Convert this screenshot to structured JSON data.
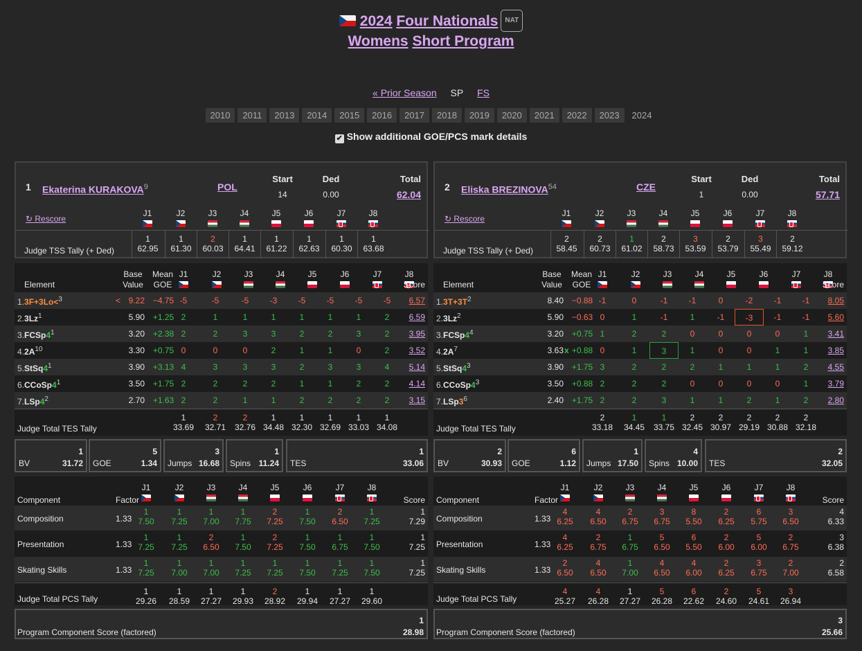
{
  "header": {
    "flag": "CZE",
    "year": "2024",
    "event": "Four Nationals",
    "badge": "NAT",
    "category": "Womens",
    "segment": "Short Program"
  },
  "nav": {
    "prior": "« Prior Season",
    "sp": "SP",
    "fs": "FS"
  },
  "years": [
    "2010",
    "2011",
    "2013",
    "2014",
    "2015",
    "2016",
    "2017",
    "2018",
    "2019",
    "2020",
    "2021",
    "2022",
    "2023",
    "2024"
  ],
  "checkbox": {
    "checked": "✔",
    "label": "Show additional GOE/PCS mark details"
  },
  "labels": {
    "start": "Start",
    "ded": "Ded",
    "total": "Total",
    "rescore": "↻ Rescore",
    "tss_tally": "Judge TSS Tally (+ Ded)",
    "element": "Element",
    "base": "Base",
    "value": "Value",
    "mean": "Mean",
    "goe": "GOE",
    "score": "Score",
    "tes_tally": "Judge Total TES Tally",
    "bv": "BV",
    "goe_s": "GOE",
    "jumps": "Jumps",
    "spins": "Spins",
    "tes": "TES",
    "component": "Component",
    "factor": "Factor",
    "pcs_tally": "Judge Total PCS Tally",
    "pcs": "Program Component Score (factored)"
  },
  "judges": [
    "J1",
    "J2",
    "J3",
    "J4",
    "J5",
    "J6",
    "J7",
    "J8"
  ],
  "judge_flags": [
    "CZE",
    "CZE",
    "HUN",
    "HUN",
    "POL",
    "POL",
    "SVK",
    "SVK"
  ],
  "skaters": [
    {
      "rank": "1",
      "name": "Ekaterina KURAKOVA",
      "name_sup": "9",
      "nation": "POL",
      "start": "14",
      "ded": "0.00",
      "total": "62.04",
      "tss": [
        [
          "1",
          "62.95"
        ],
        [
          "1",
          "61.30"
        ],
        [
          "2",
          "60.03"
        ],
        [
          "1",
          "64.41"
        ],
        [
          "1",
          "61.22"
        ],
        [
          "1",
          "62.63"
        ],
        [
          "1",
          "60.30"
        ],
        [
          "1",
          "63.68"
        ]
      ],
      "elements": [
        {
          "idx": "1.",
          "name": "3F+3Lo<",
          "sup": "3",
          "flag": "<",
          "bv": "9.22",
          "goe": "−4.75",
          "marks": [
            "-5",
            "-5",
            "-5",
            "-3",
            "-5",
            "-5",
            "-5",
            "-5"
          ],
          "score": "6.57"
        },
        {
          "idx": "2.",
          "name": "3Lz",
          "sup": "1",
          "flag": "",
          "bv": "5.90",
          "goe": "+1.25",
          "marks": [
            "2",
            "1",
            "1",
            "1",
            "1",
            "1",
            "1",
            "2"
          ],
          "score": "6.59"
        },
        {
          "idx": "3.",
          "name": "FCSp",
          "lvl": "4",
          "sup": "1",
          "flag": "",
          "bv": "3.20",
          "goe": "+2.38",
          "marks": [
            "2",
            "2",
            "3",
            "3",
            "2",
            "2",
            "3",
            "2"
          ],
          "score": "3.95"
        },
        {
          "idx": "4.",
          "name": "2A",
          "sup": "10",
          "flag": "",
          "bv": "3.30",
          "goe": "+0.75",
          "marks": [
            "0",
            "0",
            "0",
            "2",
            "1",
            "1",
            "0",
            "2"
          ],
          "score": "3.52"
        },
        {
          "idx": "5.",
          "name": "StSq",
          "lvl": "4",
          "sup": "1",
          "flag": "",
          "bv": "3.90",
          "goe": "+3.13",
          "marks": [
            "4",
            "3",
            "3",
            "3",
            "2",
            "3",
            "3",
            "4"
          ],
          "score": "5.14"
        },
        {
          "idx": "6.",
          "name": "CCoSp",
          "lvl": "4",
          "sup": "1",
          "flag": "",
          "bv": "3.50",
          "goe": "+1.75",
          "marks": [
            "2",
            "2",
            "2",
            "2",
            "1",
            "1",
            "2",
            "2"
          ],
          "score": "4.14"
        },
        {
          "idx": "7.",
          "name": "LSp",
          "lvl": "4",
          "sup": "2",
          "flag": "",
          "bv": "2.70",
          "goe": "+1.63",
          "marks": [
            "2",
            "2",
            "1",
            "1",
            "2",
            "2",
            "2",
            "2"
          ],
          "score": "3.15"
        }
      ],
      "tes": [
        [
          "1",
          "33.69"
        ],
        [
          "2",
          "32.71"
        ],
        [
          "2",
          "32.76"
        ],
        [
          "1",
          "34.48"
        ],
        [
          "1",
          "32.30"
        ],
        [
          "1",
          "32.69"
        ],
        [
          "1",
          "33.03"
        ],
        [
          "1",
          "34.08"
        ]
      ],
      "sums": {
        "bv_r": "1",
        "bv": "31.72",
        "goe_r": "5",
        "goe": "1.34",
        "jumps_r": "3",
        "jumps": "16.68",
        "spins_r": "1",
        "spins": "11.24",
        "tes_r": "1",
        "tes": "33.06"
      },
      "components": [
        {
          "name": "Composition",
          "factor": "1.33",
          "marks": [
            [
              "1",
              "7.50"
            ],
            [
              "1",
              "7.25"
            ],
            [
              "1",
              "7.00"
            ],
            [
              "1",
              "7.75"
            ],
            [
              "2",
              "7.25"
            ],
            [
              "1",
              "7.50"
            ],
            [
              "2",
              "6.50"
            ],
            [
              "1",
              "7.25"
            ]
          ],
          "score": "7.29",
          "rank": "1"
        },
        {
          "name": "Presentation",
          "factor": "1.33",
          "marks": [
            [
              "1",
              "7.25"
            ],
            [
              "1",
              "7.25"
            ],
            [
              "2",
              "6.50"
            ],
            [
              "1",
              "7.50"
            ],
            [
              "2",
              "7.25"
            ],
            [
              "1",
              "7.50"
            ],
            [
              "1",
              "6.75"
            ],
            [
              "1",
              "7.50"
            ]
          ],
          "score": "7.25",
          "rank": "1"
        },
        {
          "name": "Skating Skills",
          "factor": "1.33",
          "marks": [
            [
              "1",
              "7.25"
            ],
            [
              "1",
              "7.00"
            ],
            [
              "1",
              "7.00"
            ],
            [
              "1",
              "7.25"
            ],
            [
              "1",
              "7.25"
            ],
            [
              "1",
              "7.50"
            ],
            [
              "1",
              "7.25"
            ],
            [
              "1",
              "7.50"
            ]
          ],
          "score": "7.25",
          "rank": "1"
        }
      ],
      "pcs_tally": [
        [
          "1",
          "29.26"
        ],
        [
          "1",
          "28.59"
        ],
        [
          "1",
          "27.27"
        ],
        [
          "1",
          "29.93"
        ],
        [
          "2",
          "28.92"
        ],
        [
          "1",
          "29.94"
        ],
        [
          "1",
          "27.27"
        ],
        [
          "1",
          "29.60"
        ]
      ],
      "pcs": {
        "rank": "1",
        "value": "28.98"
      }
    },
    {
      "rank": "2",
      "name": "Eliska BREZINOVA",
      "name_sup": "54",
      "nation": "CZE",
      "start": "1",
      "ded": "0.00",
      "total": "57.71",
      "tss": [
        [
          "2",
          "58.45"
        ],
        [
          "2",
          "60.73"
        ],
        [
          "1",
          "61.02"
        ],
        [
          "2",
          "58.73"
        ],
        [
          "3",
          "53.59"
        ],
        [
          "2",
          "53.79"
        ],
        [
          "3",
          "55.49"
        ],
        [
          "2",
          "59.12"
        ]
      ],
      "elements": [
        {
          "idx": "1.",
          "name": "3T+3T",
          "sup": "2",
          "flag": "",
          "bv": "8.40",
          "goe": "−0.88",
          "marks": [
            "-1",
            "0",
            "-1",
            "-1",
            "0",
            "-2",
            "-1",
            "-1"
          ],
          "score": "8.05"
        },
        {
          "idx": "2.",
          "name": "3Lz",
          "sup": "2",
          "flag": "",
          "bv": "5.90",
          "goe": "−0.63",
          "marks": [
            "0",
            "1",
            "-1",
            "1",
            "-1",
            "-3",
            "-1",
            "-1"
          ],
          "score": "5.60"
        },
        {
          "idx": "3.",
          "name": "FCSp",
          "lvl": "4",
          "sup": "4",
          "flag": "",
          "bv": "3.20",
          "goe": "+0.75",
          "marks": [
            "1",
            "2",
            "2",
            "0",
            "0",
            "0",
            "0",
            "1"
          ],
          "score": "3.41"
        },
        {
          "idx": "4.",
          "name": "2A",
          "sup": "7",
          "flag": "",
          "bv": "3.63",
          "x": "x",
          "goe": "+0.88",
          "marks": [
            "0",
            "1",
            "3",
            "1",
            "0",
            "0",
            "1",
            "1"
          ],
          "score": "3.85"
        },
        {
          "idx": "5.",
          "name": "StSq",
          "lvl": "4",
          "sup": "3",
          "flag": "",
          "bv": "3.90",
          "goe": "+1.75",
          "marks": [
            "3",
            "2",
            "2",
            "2",
            "1",
            "1",
            "1",
            "2"
          ],
          "score": "4.55"
        },
        {
          "idx": "6.",
          "name": "CCoSp",
          "lvl": "4",
          "sup": "3",
          "flag": "",
          "bv": "3.50",
          "goe": "+0.88",
          "marks": [
            "2",
            "2",
            "2",
            "0",
            "0",
            "0",
            "0",
            "1"
          ],
          "score": "3.79"
        },
        {
          "idx": "7.",
          "name": "LSp",
          "lvl": "3",
          "sup": "6",
          "flag": "",
          "bv": "2.40",
          "goe": "+1.75",
          "marks": [
            "2",
            "2",
            "3",
            "1",
            "1",
            "2",
            "1",
            "2"
          ],
          "score": "2.80"
        }
      ],
      "tes": [
        [
          "2",
          "33.18"
        ],
        [
          "1",
          "34.45"
        ],
        [
          "1",
          "33.75"
        ],
        [
          "2",
          "32.45"
        ],
        [
          "2",
          "30.97"
        ],
        [
          "2",
          "29.19"
        ],
        [
          "2",
          "30.88"
        ],
        [
          "2",
          "32.18"
        ]
      ],
      "sums": {
        "bv_r": "2",
        "bv": "30.93",
        "goe_r": "6",
        "goe": "1.12",
        "jumps_r": "1",
        "jumps": "17.50",
        "spins_r": "4",
        "spins": "10.00",
        "tes_r": "2",
        "tes": "32.05"
      },
      "components": [
        {
          "name": "Composition",
          "factor": "1.33",
          "marks": [
            [
              "4",
              "6.25"
            ],
            [
              "4",
              "6.50"
            ],
            [
              "2",
              "6.75"
            ],
            [
              "3",
              "6.75"
            ],
            [
              "8",
              "5.50"
            ],
            [
              "2",
              "6.25"
            ],
            [
              "6",
              "5.75"
            ],
            [
              "3",
              "6.50"
            ]
          ],
          "score": "6.33",
          "rank": "4"
        },
        {
          "name": "Presentation",
          "factor": "1.33",
          "marks": [
            [
              "4",
              "6.25"
            ],
            [
              "2",
              "6.75"
            ],
            [
              "1",
              "6.75"
            ],
            [
              "5",
              "6.50"
            ],
            [
              "6",
              "5.50"
            ],
            [
              "2",
              "6.00"
            ],
            [
              "5",
              "6.00"
            ],
            [
              "2",
              "6.75"
            ]
          ],
          "score": "6.38",
          "rank": "3"
        },
        {
          "name": "Skating Skills",
          "factor": "1.33",
          "marks": [
            [
              "2",
              "6.50"
            ],
            [
              "4",
              "6.50"
            ],
            [
              "1",
              "7.00"
            ],
            [
              "4",
              "6.50"
            ],
            [
              "4",
              "6.00"
            ],
            [
              "2",
              "6.25"
            ],
            [
              "3",
              "6.75"
            ],
            [
              "2",
              "7.00"
            ]
          ],
          "score": "6.58",
          "rank": "2"
        }
      ],
      "pcs_tally": [
        [
          "4",
          "25.27"
        ],
        [
          "4",
          "26.28"
        ],
        [
          "1",
          "27.27"
        ],
        [
          "5",
          "26.28"
        ],
        [
          "6",
          "22.62"
        ],
        [
          "2",
          "24.60"
        ],
        [
          "5",
          "24.61"
        ],
        [
          "3",
          "26.94"
        ]
      ],
      "pcs": {
        "rank": "3",
        "value": "25.66"
      }
    }
  ]
}
